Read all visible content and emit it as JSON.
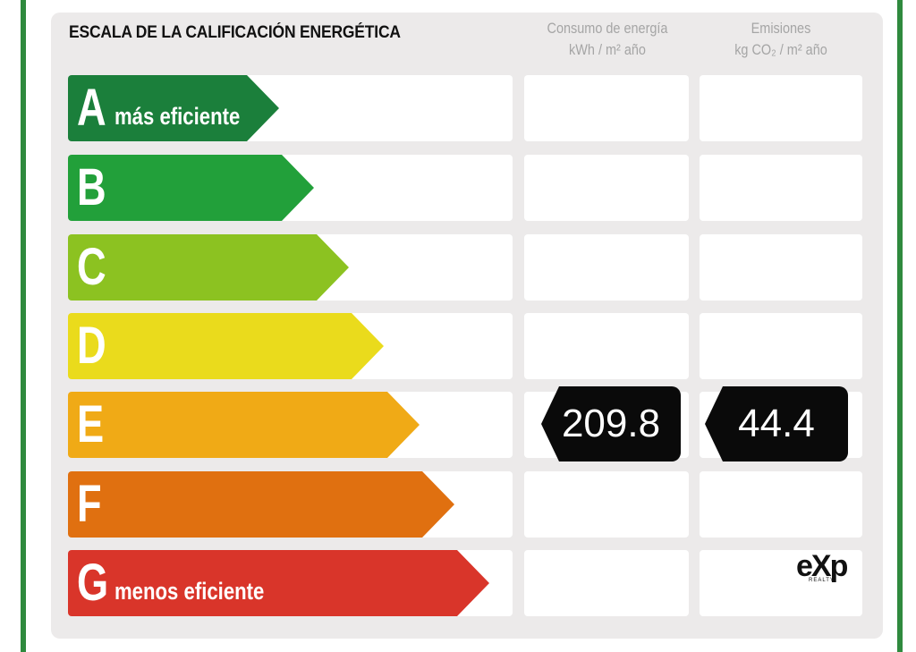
{
  "title": "ESCALA DE LA CALIFICACIÓN ENERGÉTICA",
  "columns": {
    "energy": {
      "line1": "Consumo de energía",
      "line2": "kWh / m² año"
    },
    "emissions": {
      "line1": "Emisiones",
      "line2": "kg CO₂ / m² año"
    }
  },
  "ratings": [
    {
      "letter": "A",
      "sublabel": "más eficiente",
      "color": "#1b7f3b"
    },
    {
      "letter": "B",
      "sublabel": "",
      "color": "#22a03a"
    },
    {
      "letter": "C",
      "sublabel": "",
      "color": "#8cc221"
    },
    {
      "letter": "D",
      "sublabel": "",
      "color": "#eadb1c"
    },
    {
      "letter": "E",
      "sublabel": "",
      "color": "#f0aa16"
    },
    {
      "letter": "F",
      "sublabel": "",
      "color": "#e07010"
    },
    {
      "letter": "G",
      "sublabel": "menos eficiente",
      "color": "#d9352a"
    }
  ],
  "current_rating": "E",
  "energy_value": "209.8",
  "emissions_value": "44.4",
  "logo": {
    "text": "eXp",
    "sub": "REALTY"
  },
  "colors": {
    "frame": "#2f8a3e",
    "panel": "#eceaea",
    "badge": "#0a0a0a"
  }
}
